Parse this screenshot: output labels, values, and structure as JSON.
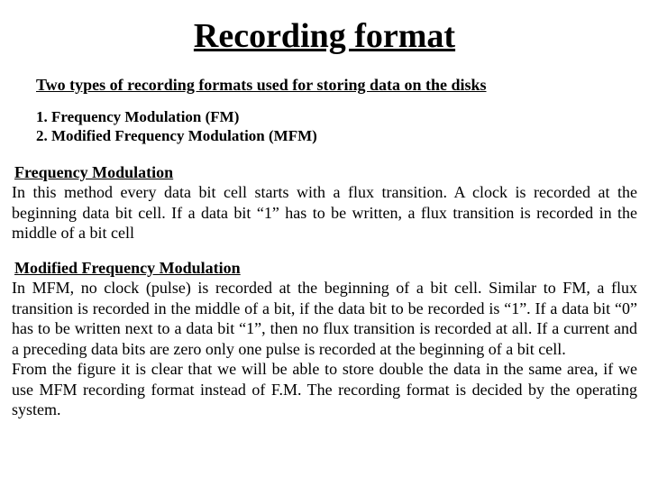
{
  "title": "Recording format",
  "subtitle": "Two types of recording formats used for storing data on the disks",
  "list": {
    "item1": "1. Frequency Modulation (FM)",
    "item2": "2. Modified Frequency Modulation (MFM)"
  },
  "fm": {
    "heading": "Frequency Modulation",
    "body": "In this method every data bit cell starts with a flux transition. A clock is recorded at the beginning data bit cell. If a data bit “1” has to be written, a flux transition is recorded in the middle of a bit cell"
  },
  "mfm": {
    "heading": "Modified Frequency Modulation",
    "body1": "In MFM, no clock (pulse) is recorded at the beginning of a bit cell. Similar to FM, a flux transition is recorded in the middle of a bit, if the data bit to be recorded is “1”.  If a data bit “0” has to be written next to a data bit “1”, then no flux transition is recorded at all. If a current and a preceding data bits are zero only one pulse is recorded at the beginning of a bit cell.",
    "body2": "From the figure it is clear that we will be able to store double the data in the same area, if we use MFM recording format instead of F.M. The recording format is decided by the operating system."
  }
}
